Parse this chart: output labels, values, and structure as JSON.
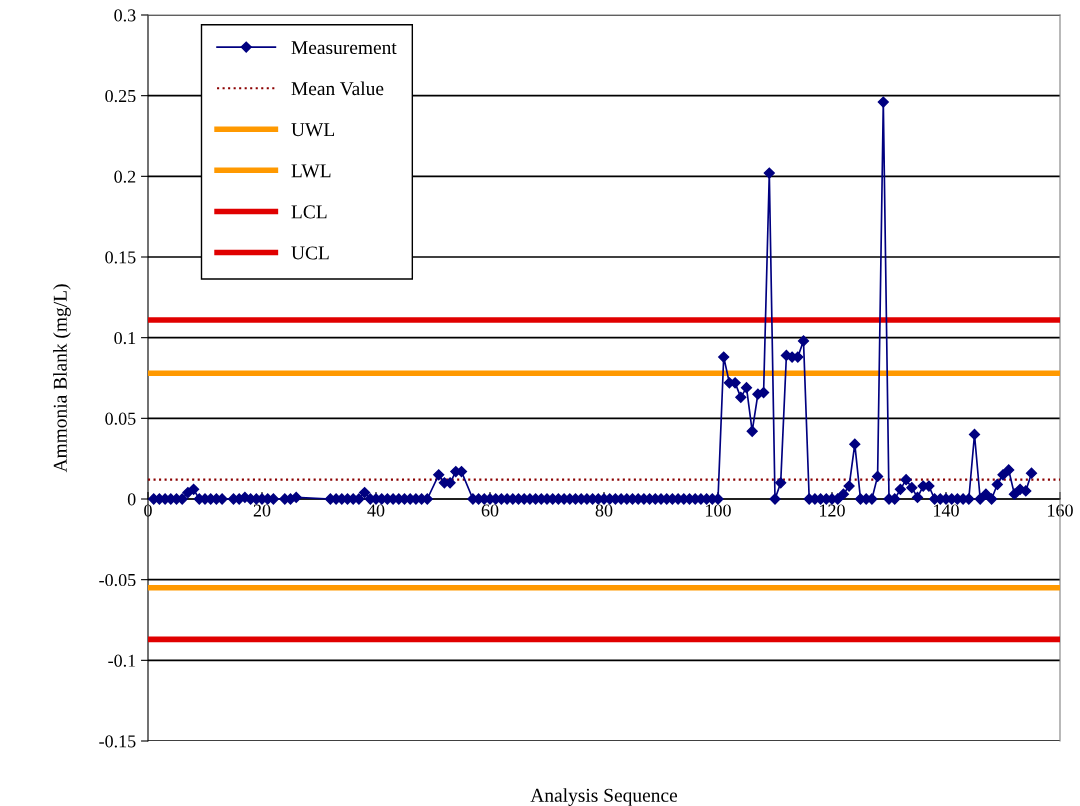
{
  "chart_data": {
    "type": "line",
    "xlabel": "Analysis Sequence",
    "ylabel": "Ammonia Blank (mg/L)",
    "xlim": [
      0,
      160
    ],
    "xticks": [
      0,
      20,
      40,
      60,
      80,
      100,
      120,
      140,
      160
    ],
    "ylim": [
      -0.15,
      0.3
    ],
    "yticks": [
      -0.15,
      -0.1,
      -0.05,
      0,
      0.05,
      0.1,
      0.15,
      0.2,
      0.25,
      0.3
    ],
    "grid": "y",
    "legend": "top left",
    "marker": "diamond",
    "line_style": "solid",
    "series": [
      {
        "name": "Measurement",
        "color": "#000080",
        "x": [
          1,
          2,
          3,
          4,
          5,
          6,
          7,
          8,
          9,
          10,
          11,
          12,
          13,
          15,
          16,
          17,
          18,
          19,
          20,
          21,
          22,
          24,
          25,
          26,
          32,
          33,
          34,
          35,
          36,
          37,
          38,
          39,
          40,
          41,
          42,
          43,
          44,
          45,
          46,
          47,
          48,
          49,
          51,
          52,
          53,
          54,
          55,
          57,
          58,
          59,
          60,
          61,
          62,
          63,
          64,
          65,
          66,
          67,
          68,
          69,
          70,
          71,
          72,
          73,
          74,
          75,
          76,
          77,
          78,
          79,
          80,
          81,
          82,
          83,
          84,
          85,
          86,
          87,
          88,
          89,
          90,
          91,
          92,
          93,
          94,
          95,
          96,
          97,
          98,
          99,
          100,
          101,
          102,
          103,
          104,
          105,
          106,
          107,
          108,
          109,
          110,
          111,
          112,
          113,
          114,
          115,
          116,
          117,
          118,
          119,
          120,
          121,
          122,
          123,
          124,
          125,
          126,
          127,
          128,
          129,
          130,
          131,
          132,
          133,
          134,
          135,
          136,
          137,
          138,
          139,
          140,
          141,
          142,
          143,
          144,
          145,
          146,
          147,
          148,
          149,
          150,
          151,
          152,
          153,
          154,
          155
        ],
        "values": [
          0,
          0,
          0,
          0,
          0,
          0,
          0.004,
          0.006,
          0,
          0,
          0,
          0,
          0,
          0,
          0,
          0.001,
          0,
          0,
          0,
          0,
          0,
          0,
          0,
          0.001,
          0,
          0,
          0,
          0,
          0,
          0,
          0.004,
          0,
          0,
          0,
          0,
          0,
          0,
          0,
          0,
          0,
          0,
          0,
          0.015,
          0.01,
          0.01,
          0.017,
          0.017,
          0,
          0,
          0,
          0,
          0,
          0,
          0,
          0,
          0,
          0,
          0,
          0,
          0,
          0,
          0,
          0,
          0,
          0,
          0,
          0,
          0,
          0,
          0,
          0,
          0,
          0,
          0,
          0,
          0,
          0,
          0,
          0,
          0,
          0,
          0,
          0,
          0,
          0,
          0,
          0,
          0,
          0,
          0,
          0,
          0.088,
          0.072,
          0.072,
          0.063,
          0.069,
          0.042,
          0.065,
          0.066,
          0.202,
          0,
          0.01,
          0.089,
          0.088,
          0.088,
          0.098,
          0,
          0,
          0,
          0,
          0,
          0,
          0.003,
          0.008,
          0.034,
          0,
          0,
          0,
          0.014,
          0.246,
          0,
          0,
          0.006,
          0.012,
          0.007,
          0.001,
          0.008,
          0.008,
          0,
          0,
          0,
          0,
          0,
          0,
          0,
          0.04,
          0,
          0.003,
          0,
          0.009,
          0.015,
          0.018,
          0.003,
          0.006,
          0.005,
          0.016
        ]
      }
    ],
    "ref_lines": [
      {
        "axis": "y",
        "value": 0.012,
        "label": "Mean Value",
        "color": "#8b0000",
        "line_style": "dotted"
      },
      {
        "axis": "y",
        "value": 0.078,
        "label": "UWL",
        "color": "#ff9900",
        "line_style": "solid"
      },
      {
        "axis": "y",
        "value": -0.055,
        "label": "LWL",
        "color": "#ff9900",
        "line_style": "solid"
      },
      {
        "axis": "y",
        "value": -0.087,
        "label": "LCL",
        "color": "#e00000",
        "line_style": "solid"
      },
      {
        "axis": "y",
        "value": 0.111,
        "label": "UCL",
        "color": "#e00000",
        "line_style": "solid"
      }
    ]
  }
}
